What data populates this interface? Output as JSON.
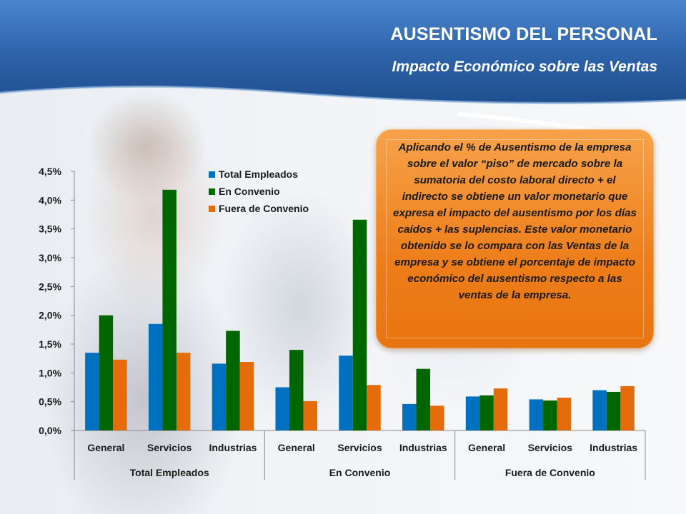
{
  "header": {
    "title": "AUSENTISMO DEL PERSONAL",
    "subtitle": "Impacto Económico sobre las Ventas"
  },
  "callout": {
    "text": "Aplicando el % de Ausentismo de la empresa sobre el valor “piso” de mercado sobre la sumatoria del costo laboral directo + el indirecto se obtiene un valor monetario que expresa el impacto del ausentismo por los días caídos + las suplencias. Este valor monetario obtenido se lo compara con las Ventas de la empresa y se obtiene el porcentaje de impacto económico del ausentismo respecto a las ventas de la empresa."
  },
  "colors": {
    "header_blue": "#2d62a8",
    "series_total": "#0070c0",
    "series_convenio": "#006600",
    "series_fuera": "#e46c0a",
    "callout_orange": "#ee7e1a"
  },
  "chart_data": {
    "type": "bar",
    "y_ticks": [
      "0,0%",
      "0,5%",
      "1,0%",
      "1,5%",
      "2,0%",
      "2,5%",
      "3,0%",
      "3,5%",
      "4,0%",
      "4,5%"
    ],
    "ylim": [
      0,
      4.5
    ],
    "grid": false,
    "legend_position": "top",
    "groups": [
      {
        "label": "Total Empleados",
        "categories": [
          "General",
          "Servicios",
          "Industrias"
        ]
      },
      {
        "label": "En Convenio",
        "categories": [
          "General",
          "Servicios",
          "Industrias"
        ]
      },
      {
        "label": "Fuera de Convenio",
        "categories": [
          "General",
          "Servicios",
          "Industrias"
        ]
      }
    ],
    "series": [
      {
        "name": "Total Empleados",
        "color": "#0070c0",
        "values": [
          1.35,
          1.85,
          1.16,
          0.75,
          1.3,
          0.46,
          0.59,
          0.54,
          0.7
        ]
      },
      {
        "name": "En Convenio",
        "color": "#006600",
        "values": [
          2.0,
          4.18,
          1.73,
          1.4,
          3.66,
          1.07,
          0.61,
          0.52,
          0.67
        ]
      },
      {
        "name": "Fuera de Convenio",
        "color": "#e46c0a",
        "values": [
          1.23,
          1.35,
          1.19,
          0.51,
          0.79,
          0.43,
          0.73,
          0.57,
          0.77
        ]
      }
    ]
  }
}
